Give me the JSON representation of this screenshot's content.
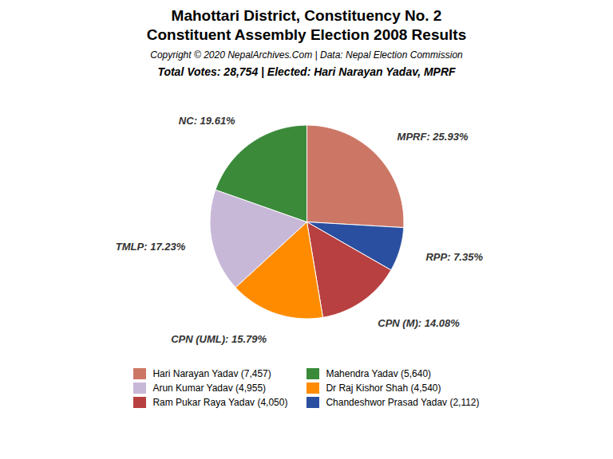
{
  "chart_data": {
    "type": "pie",
    "title": [
      "Mahottari District, Constituency No. 2",
      "Constituent Assembly Election 2008 Results"
    ],
    "annotations": [
      "Copyright © 2020 NepalArchives.Com | Data: Nepal Election Commission"
    ],
    "subtitle": "Total Votes: 28,754 | Elected: Hari Narayan Yadav, MPRF",
    "categories": [
      "MPRF",
      "RPP",
      "CPN (M)",
      "CPN (UML)",
      "TMLP",
      "NC"
    ],
    "values": [
      25.93,
      7.35,
      14.08,
      15.79,
      17.23,
      19.61
    ],
    "value_labels": [
      "MPRF: 25.93%",
      "RPP: 7.35%",
      "CPN (M): 14.08%",
      "CPN (UML): 15.79%",
      "TMLP: 17.23%",
      "NC: 19.61%"
    ],
    "colors": [
      "#CC7766",
      "#2B4FA0",
      "#B84040",
      "#FF8C00",
      "#C8B8D8",
      "#3A8A3A"
    ],
    "data_labels": true,
    "legend": "bottom",
    "legend_entries": [
      {
        "name": "Hari Narayan Yadav (7,457)",
        "color": "#CC7766"
      },
      {
        "name": "Arun Kumar Yadav (4,955)",
        "color": "#C8B8D8"
      },
      {
        "name": "Ram Pukar Raya Yadav (4,050)",
        "color": "#B84040"
      },
      {
        "name": "Mahendra Yadav (5,640)",
        "color": "#3A8A3A"
      },
      {
        "name": "Dr Raj Kishor Shah (4,540)",
        "color": "#FF8C00"
      },
      {
        "name": "Chandeshwor Prasad Yadav (2,112)",
        "color": "#2B4FA0"
      }
    ]
  }
}
